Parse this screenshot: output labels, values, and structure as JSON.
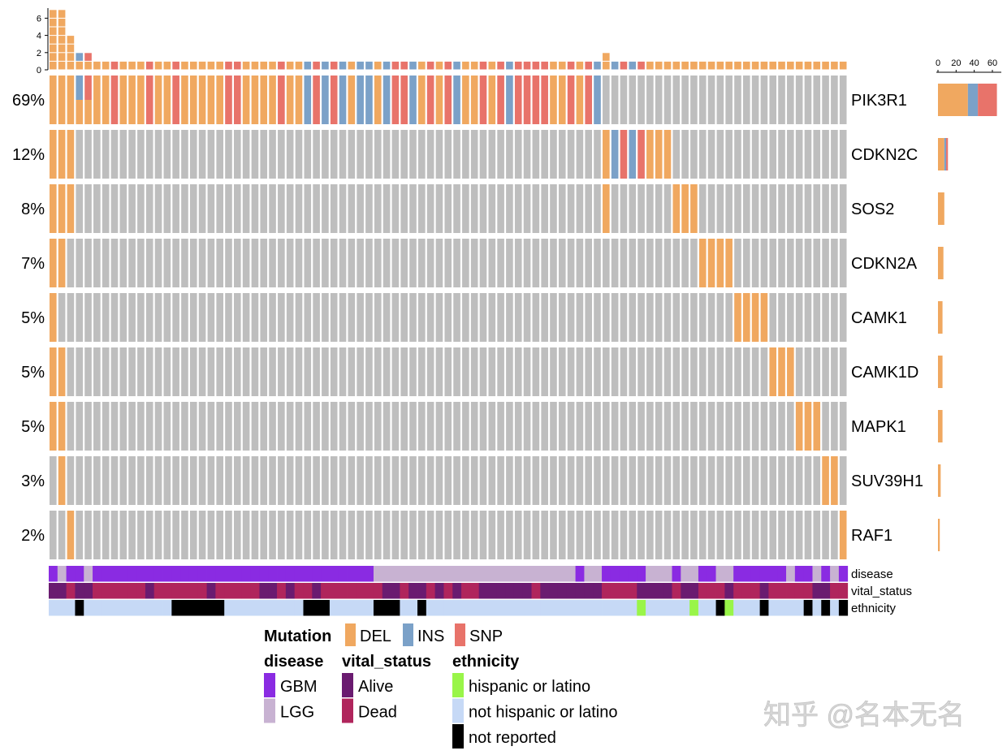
{
  "chart_data": {
    "type": "oncoplot",
    "title": "",
    "n_samples": 91,
    "colors": {
      "DEL": "#F0A860",
      "INS": "#7BA1C8",
      "SNP": "#E8736A",
      "none": "#BEBEBE",
      "GBM": "#8A2BE2",
      "LGG": "#C8B2D2",
      "Alive": "#6A1B70",
      "Dead": "#B0255C",
      "hispanic or latino": "#99F549",
      "not hispanic or latino": "#C6D9F6",
      "not reported": "#000000"
    },
    "top_axis": {
      "ticks": [
        "0",
        "2",
        "4",
        "6"
      ],
      "ylim": [
        0,
        7
      ]
    },
    "side_axis": {
      "ticks": [
        "0",
        "20",
        "40",
        "60"
      ],
      "xlim": [
        0,
        67
      ]
    },
    "genes": [
      {
        "name": "PIK3R1",
        "percent": "69%",
        "hits": {
          "1": "DEL",
          "2": "DEL",
          "3": "DEL",
          "4": "INS+DEL",
          "5": "SNP+DEL",
          "6": "DEL",
          "7": "DEL",
          "8": "SNP",
          "9": "DEL",
          "10": "DEL",
          "11": "DEL",
          "12": "SNP",
          "13": "DEL",
          "14": "DEL",
          "15": "SNP",
          "16": "DEL",
          "17": "DEL",
          "18": "DEL",
          "19": "DEL",
          "20": "DEL",
          "21": "SNP",
          "22": "SNP",
          "23": "DEL",
          "24": "DEL",
          "25": "DEL",
          "26": "DEL",
          "27": "SNP",
          "28": "DEL",
          "29": "DEL",
          "30": "INS",
          "31": "SNP",
          "32": "INS",
          "33": "SNP",
          "34": "INS",
          "35": "DEL",
          "36": "INS",
          "37": "INS",
          "38": "DEL",
          "39": "INS",
          "40": "SNP",
          "41": "SNP",
          "42": "INS",
          "43": "DEL",
          "44": "SNP",
          "45": "DEL",
          "46": "SNP",
          "47": "INS",
          "48": "DEL",
          "49": "DEL",
          "50": "SNP",
          "51": "DEL",
          "52": "SNP",
          "53": "INS",
          "54": "SNP",
          "55": "SNP",
          "56": "SNP",
          "57": "SNP",
          "58": "DEL",
          "59": "DEL",
          "60": "SNP",
          "61": "DEL",
          "62": "SNP",
          "63": "INS"
        }
      },
      {
        "name": "CDKN2C",
        "percent": "12%",
        "hits": {
          "1": "DEL",
          "2": "DEL",
          "3": "DEL",
          "64": "DEL",
          "65": "INS",
          "66": "SNP",
          "67": "INS",
          "68": "SNP",
          "69": "DEL",
          "70": "DEL",
          "71": "DEL"
        }
      },
      {
        "name": "SOS2",
        "percent": "8%",
        "hits": {
          "1": "DEL",
          "2": "DEL",
          "3": "DEL",
          "64": "DEL",
          "72": "DEL",
          "73": "DEL",
          "74": "DEL"
        }
      },
      {
        "name": "CDKN2A",
        "percent": "7%",
        "hits": {
          "1": "DEL",
          "2": "DEL",
          "75": "DEL",
          "76": "DEL",
          "77": "DEL",
          "78": "DEL"
        }
      },
      {
        "name": "CAMK1",
        "percent": "5%",
        "hits": {
          "1": "DEL",
          "79": "DEL",
          "80": "DEL",
          "81": "DEL",
          "82": "DEL"
        }
      },
      {
        "name": "CAMK1D",
        "percent": "5%",
        "hits": {
          "1": "DEL",
          "2": "DEL",
          "83": "DEL",
          "84": "DEL",
          "85": "DEL"
        }
      },
      {
        "name": "MAPK1",
        "percent": "5%",
        "hits": {
          "1": "DEL",
          "2": "DEL",
          "86": "DEL",
          "87": "DEL",
          "88": "DEL"
        }
      },
      {
        "name": "SUV39H1",
        "percent": "3%",
        "hits": {
          "2": "DEL",
          "89": "DEL",
          "90": "DEL"
        }
      },
      {
        "name": "RAF1",
        "percent": "2%",
        "hits": {
          "3": "DEL",
          "91": "DEL"
        }
      }
    ],
    "annotations": [
      {
        "name": "disease",
        "runs": [
          [
            "GBM",
            1
          ],
          [
            "LGG",
            1
          ],
          [
            "GBM",
            2
          ],
          [
            "LGG",
            1
          ],
          [
            "GBM",
            32
          ],
          [
            "LGG",
            23
          ],
          [
            "GBM",
            1
          ],
          [
            "LGG",
            2
          ],
          [
            "GBM",
            5
          ],
          [
            "LGG",
            3
          ],
          [
            "GBM",
            1
          ],
          [
            "LGG",
            2
          ],
          [
            "GBM",
            2
          ],
          [
            "LGG",
            2
          ],
          [
            "GBM",
            6
          ],
          [
            "LGG",
            1
          ],
          [
            "GBM",
            2
          ],
          [
            "LGG",
            1
          ],
          [
            "GBM",
            1
          ],
          [
            "LGG",
            1
          ],
          [
            "GBM",
            1
          ]
        ]
      },
      {
        "name": "vital_status",
        "runs": [
          [
            "Alive",
            2
          ],
          [
            "Dead",
            1
          ],
          [
            "Alive",
            2
          ],
          [
            "Dead",
            6
          ],
          [
            "Alive",
            1
          ],
          [
            "Dead",
            6
          ],
          [
            "Alive",
            1
          ],
          [
            "Dead",
            5
          ],
          [
            "Alive",
            2
          ],
          [
            "Dead",
            1
          ],
          [
            "Alive",
            1
          ],
          [
            "Dead",
            2
          ],
          [
            "Alive",
            1
          ],
          [
            "Dead",
            7
          ],
          [
            "Alive",
            2
          ],
          [
            "Dead",
            1
          ],
          [
            "Alive",
            2
          ],
          [
            "Dead",
            1
          ],
          [
            "Alive",
            1
          ],
          [
            "Dead",
            1
          ],
          [
            "Alive",
            1
          ],
          [
            "Dead",
            2
          ],
          [
            "Alive",
            6
          ],
          [
            "Dead",
            1
          ],
          [
            "Alive",
            7
          ],
          [
            "Dead",
            4
          ],
          [
            "Alive",
            4
          ],
          [
            "Dead",
            1
          ],
          [
            "Alive",
            2
          ],
          [
            "Dead",
            3
          ],
          [
            "Alive",
            1
          ],
          [
            "Dead",
            3
          ],
          [
            "Alive",
            1
          ],
          [
            "Dead",
            5
          ],
          [
            "Alive",
            2
          ],
          [
            "Dead",
            2
          ]
        ]
      },
      {
        "name": "ethnicity",
        "runs": [
          [
            "not hispanic or latino",
            3
          ],
          [
            "not reported",
            1
          ],
          [
            "not hispanic or latino",
            10
          ],
          [
            "not reported",
            6
          ],
          [
            "not hispanic or latino",
            9
          ],
          [
            "not reported",
            3
          ],
          [
            "not hispanic or latino",
            5
          ],
          [
            "not reported",
            3
          ],
          [
            "not hispanic or latino",
            2
          ],
          [
            "not reported",
            1
          ],
          [
            "not hispanic or latino",
            24
          ],
          [
            "hispanic or latino",
            1
          ],
          [
            "not hispanic or latino",
            5
          ],
          [
            "hispanic or latino",
            1
          ],
          [
            "not hispanic or latino",
            2
          ],
          [
            "not reported",
            1
          ],
          [
            "hispanic or latino",
            1
          ],
          [
            "not hispanic or latino",
            3
          ],
          [
            "not reported",
            1
          ],
          [
            "not hispanic or latino",
            4
          ],
          [
            "not reported",
            1
          ],
          [
            "not hispanic or latino",
            1
          ],
          [
            "not reported",
            1
          ],
          [
            "not hispanic or latino",
            1
          ],
          [
            "not reported",
            1
          ]
        ]
      }
    ],
    "legend": {
      "mutation_title": "Mutation",
      "mutation_items": [
        "DEL",
        "INS",
        "SNP"
      ],
      "groups": [
        {
          "title": "disease",
          "items": [
            "GBM",
            "LGG"
          ]
        },
        {
          "title": "vital_status",
          "items": [
            "Alive",
            "Dead"
          ]
        },
        {
          "title": "ethnicity",
          "items": [
            "hispanic or latino",
            "not hispanic or latino",
            "not reported"
          ]
        }
      ]
    }
  },
  "watermark": "知乎 @名本无名"
}
